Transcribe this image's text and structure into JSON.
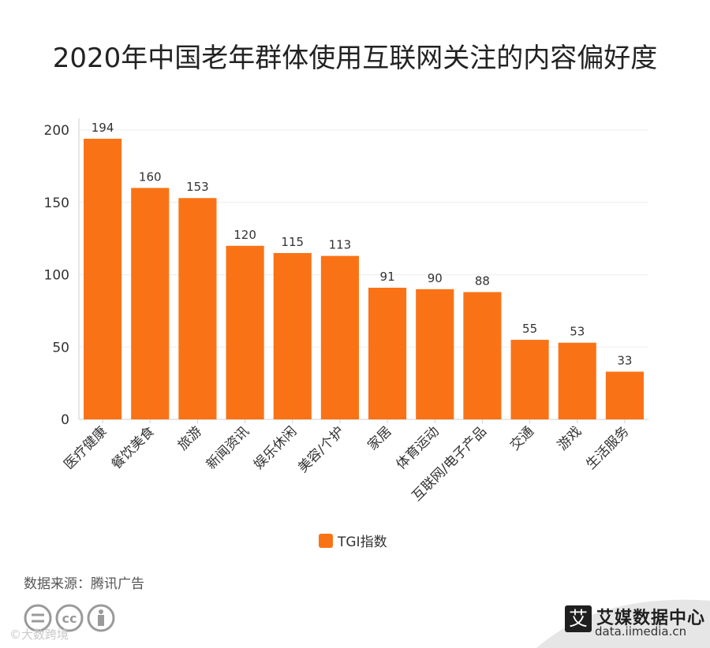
{
  "header": {
    "title": "2020年中国老年群体使用互联网关注的内容偏好度"
  },
  "chart_data": {
    "type": "bar",
    "title": "2020年中国老年群体使用互联网关注的内容偏好度",
    "categories": [
      "医疗健康",
      "餐饮美食",
      "旅游",
      "新闻资讯",
      "娱乐休闲",
      "美容/个护",
      "家居",
      "体育运动",
      "互联网/电子产品",
      "交通",
      "游戏",
      "生活服务"
    ],
    "series": [
      {
        "name": "TGI指数",
        "values": [
          194,
          160,
          153,
          120,
          115,
          113,
          91,
          90,
          88,
          55,
          53,
          33
        ],
        "color": "#f97316"
      }
    ],
    "ylim": [
      0,
      200
    ],
    "yticks": [
      0,
      50,
      100,
      150,
      200
    ],
    "xlabel": "",
    "ylabel": "",
    "grid": true,
    "legend": "bottom-center"
  },
  "footer": {
    "source": "数据来源：腾讯广告",
    "brand_logo": "艾",
    "brand_name": "艾媒数据中心",
    "brand_url": "data.iimedia.cn",
    "watermark": "©大数跨境",
    "icons": [
      "equal-icon",
      "cc-icon",
      "person-icon"
    ]
  }
}
